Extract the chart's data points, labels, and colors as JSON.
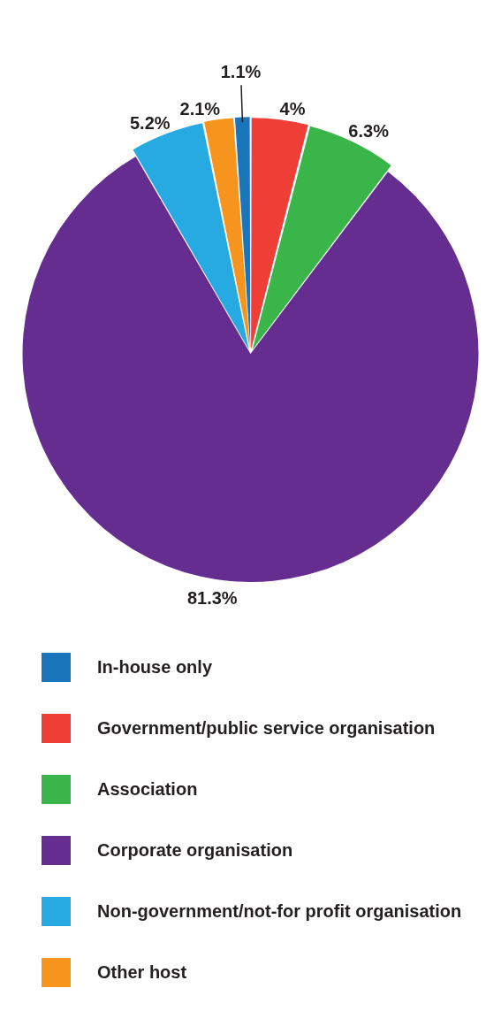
{
  "chart_data": {
    "type": "pie",
    "categories": [
      "In-house only",
      "Government/public service organisation",
      "Association",
      "Corporate organisation",
      "Non-government/not-for profit organisation",
      "Other host"
    ],
    "values": [
      1.1,
      4,
      6.3,
      81.3,
      5.2,
      2.1
    ],
    "colors": [
      "#1a75bb",
      "#ef3e36",
      "#3ab54a",
      "#652d90",
      "#27aae1",
      "#f7941d"
    ],
    "value_labels": [
      "1.1%",
      "4%",
      "6.3%",
      "81.3%",
      "5.2%",
      "2.1%"
    ],
    "legend": "bottom"
  }
}
